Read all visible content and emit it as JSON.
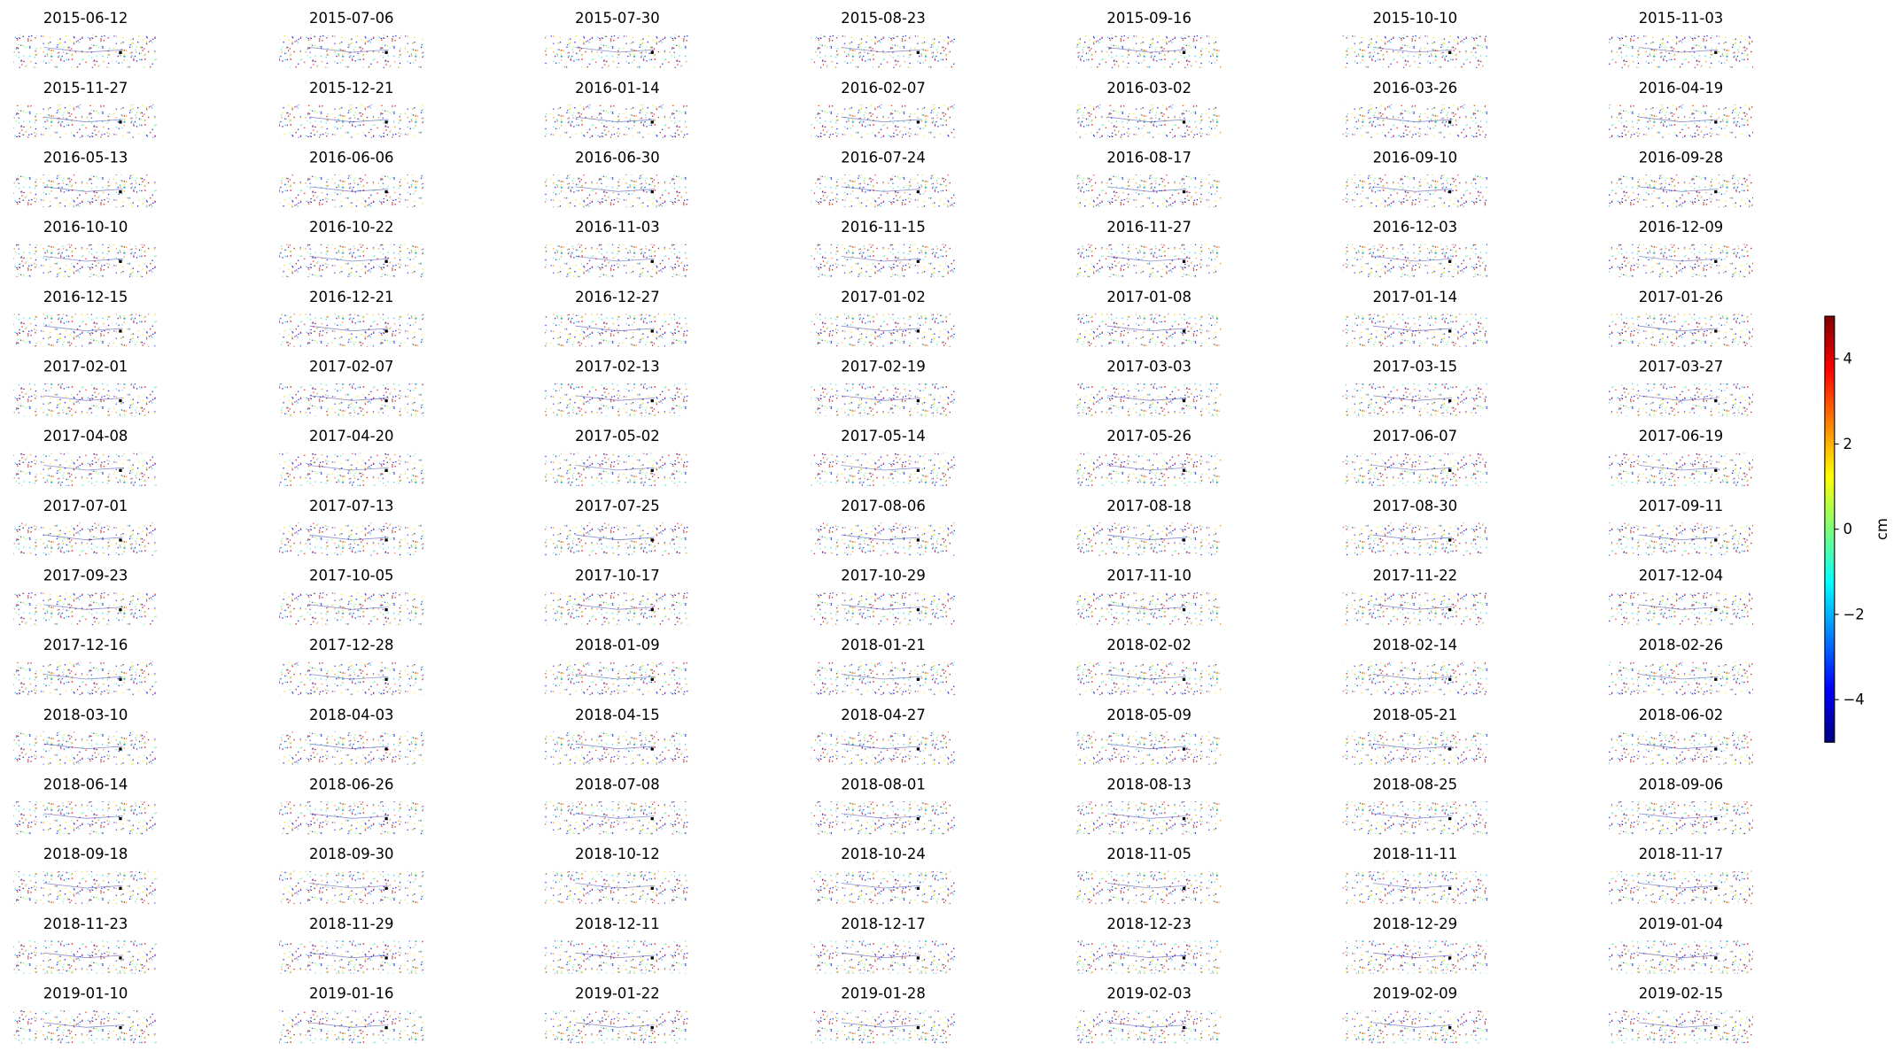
{
  "chart_data": {
    "type": "image-grid",
    "panel_titles": [
      "2015-06-12",
      "2015-07-06",
      "2015-07-30",
      "2015-08-23",
      "2015-09-16",
      "2015-10-10",
      "2015-11-03",
      "2015-11-27",
      "2015-12-21",
      "2016-01-14",
      "2016-02-07",
      "2016-03-02",
      "2016-03-26",
      "2016-04-19",
      "2016-05-13",
      "2016-06-06",
      "2016-06-30",
      "2016-07-24",
      "2016-08-17",
      "2016-09-10",
      "2016-09-28",
      "2016-10-10",
      "2016-10-22",
      "2016-11-03",
      "2016-11-15",
      "2016-11-27",
      "2016-12-03",
      "2016-12-09",
      "2016-12-15",
      "2016-12-21",
      "2016-12-27",
      "2017-01-02",
      "2017-01-08",
      "2017-01-14",
      "2017-01-26",
      "2017-02-01",
      "2017-02-07",
      "2017-02-13",
      "2017-02-19",
      "2017-03-03",
      "2017-03-15",
      "2017-03-27",
      "2017-04-08",
      "2017-04-20",
      "2017-05-02",
      "2017-05-14",
      "2017-05-26",
      "2017-06-07",
      "2017-06-19",
      "2017-07-01",
      "2017-07-13",
      "2017-07-25",
      "2017-08-06",
      "2017-08-18",
      "2017-08-30",
      "2017-09-11",
      "2017-09-23",
      "2017-10-05",
      "2017-10-17",
      "2017-10-29",
      "2017-11-10",
      "2017-11-22",
      "2017-12-04",
      "2017-12-16",
      "2017-12-28",
      "2018-01-09",
      "2018-01-21",
      "2018-02-02",
      "2018-02-14",
      "2018-02-26",
      "2018-03-10",
      "2018-04-03",
      "2018-04-15",
      "2018-04-27",
      "2018-05-09",
      "2018-05-21",
      "2018-06-02",
      "2018-06-14",
      "2018-06-26",
      "2018-07-08",
      "2018-08-01",
      "2018-08-13",
      "2018-08-25",
      "2018-09-06",
      "2018-09-18",
      "2018-09-30",
      "2018-10-12",
      "2018-10-24",
      "2018-11-05",
      "2018-11-11",
      "2018-11-17",
      "2018-11-23",
      "2018-11-29",
      "2018-12-11",
      "2018-12-17",
      "2018-12-23",
      "2018-12-29",
      "2019-01-04",
      "2019-01-10",
      "2019-01-16",
      "2019-01-22",
      "2019-01-28",
      "2019-02-03",
      "2019-02-09",
      "2019-02-15"
    ],
    "columns": 7,
    "colorbar": {
      "label": "cm",
      "colormap": "jet",
      "clim": [
        -5,
        5
      ],
      "ticks": [
        {
          "value": -4,
          "label": "−4"
        },
        {
          "value": -2,
          "label": "−2"
        },
        0,
        2,
        4
      ]
    }
  }
}
